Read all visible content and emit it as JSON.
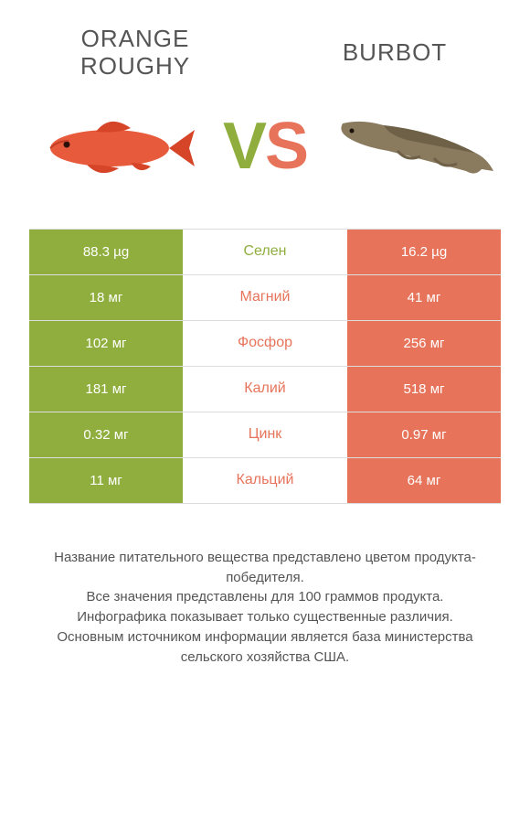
{
  "colors": {
    "left": "#8fae3d",
    "right": "#e7745a",
    "row_border": "#dddddd",
    "title_text": "#555555",
    "value_text": "#ffffff",
    "footnote_text": "#555555",
    "background": "#ffffff"
  },
  "typography": {
    "title_fontsize": 26,
    "vs_fontsize": 72,
    "nutrient_fontsize": 16,
    "value_fontsize": 15,
    "footnote_fontsize": 15
  },
  "header": {
    "left_title": "Orange\nroughy",
    "right_title": "Burbot",
    "vs_v": "V",
    "vs_s": "S"
  },
  "images": {
    "left_alt": "orange-roughy-fish",
    "right_alt": "burbot-fish"
  },
  "comparison": {
    "type": "comparison-table",
    "rows": [
      {
        "nutrient": "Селен",
        "left": "88.3 µg",
        "right": "16.2 µg",
        "winner": "left"
      },
      {
        "nutrient": "Магний",
        "left": "18 мг",
        "right": "41 мг",
        "winner": "right"
      },
      {
        "nutrient": "Фосфор",
        "left": "102 мг",
        "right": "256 мг",
        "winner": "right"
      },
      {
        "nutrient": "Калий",
        "left": "181 мг",
        "right": "518 мг",
        "winner": "right"
      },
      {
        "nutrient": "Цинк",
        "left": "0.32 мг",
        "right": "0.97 мг",
        "winner": "right"
      },
      {
        "nutrient": "Кальций",
        "left": "11 мг",
        "right": "64 мг",
        "winner": "right"
      }
    ]
  },
  "footnote": "Название питательного вещества представлено цветом продукта-победителя.\nВсе значения представлены для 100 граммов продукта.\nИнфографика показывает только существенные различия.\nОсновным источником информации является база министерства сельского хозяйства США."
}
